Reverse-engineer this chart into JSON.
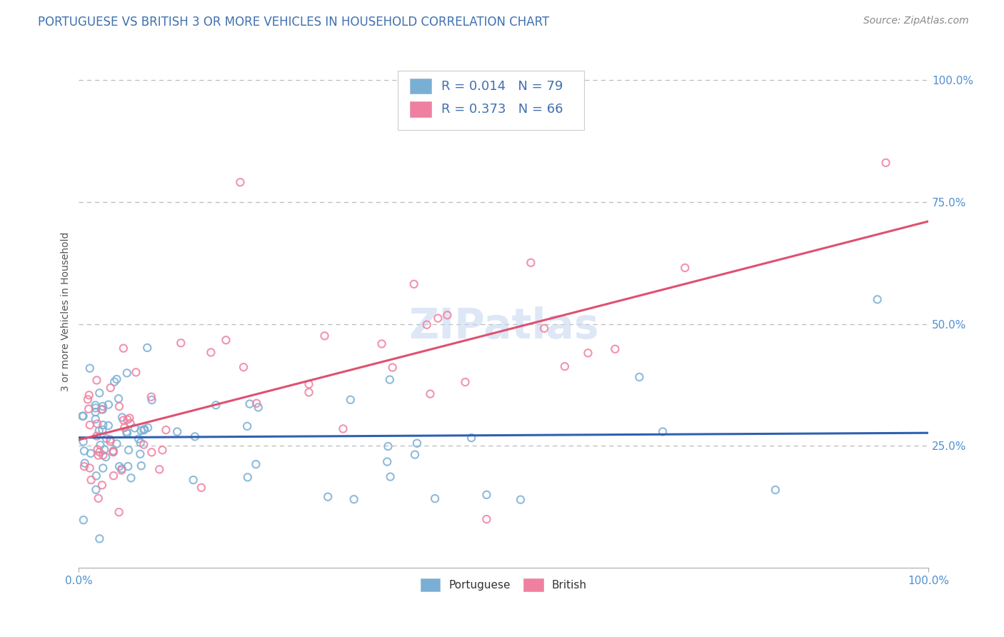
{
  "title": "PORTUGUESE VS BRITISH 3 OR MORE VEHICLES IN HOUSEHOLD CORRELATION CHART",
  "source_text": "Source: ZipAtlas.com",
  "ylabel": "3 or more Vehicles in Household",
  "xlim": [
    0.0,
    1.0
  ],
  "ylim": [
    0.0,
    1.05
  ],
  "legend_r1": "R = 0.014",
  "legend_n1": "N = 79",
  "legend_r2": "R = 0.373",
  "legend_n2": "N = 66",
  "color_portuguese": "#7aafd4",
  "color_british": "#f080a0",
  "color_line_portuguese": "#3060b0",
  "color_line_british": "#e05070",
  "color_title": "#4070b0",
  "color_source": "#888888",
  "color_tick": "#5090d0",
  "color_grid": "#bbbbbb",
  "color_ylabel": "#555555",
  "watermark_color": "#c8d8f0",
  "watermark_text": "ZIPatlas",
  "title_fontsize": 12,
  "axis_label_fontsize": 10,
  "tick_fontsize": 11,
  "legend_fontsize": 13,
  "source_fontsize": 10,
  "marker_size": 55,
  "marker_lw": 1.5
}
